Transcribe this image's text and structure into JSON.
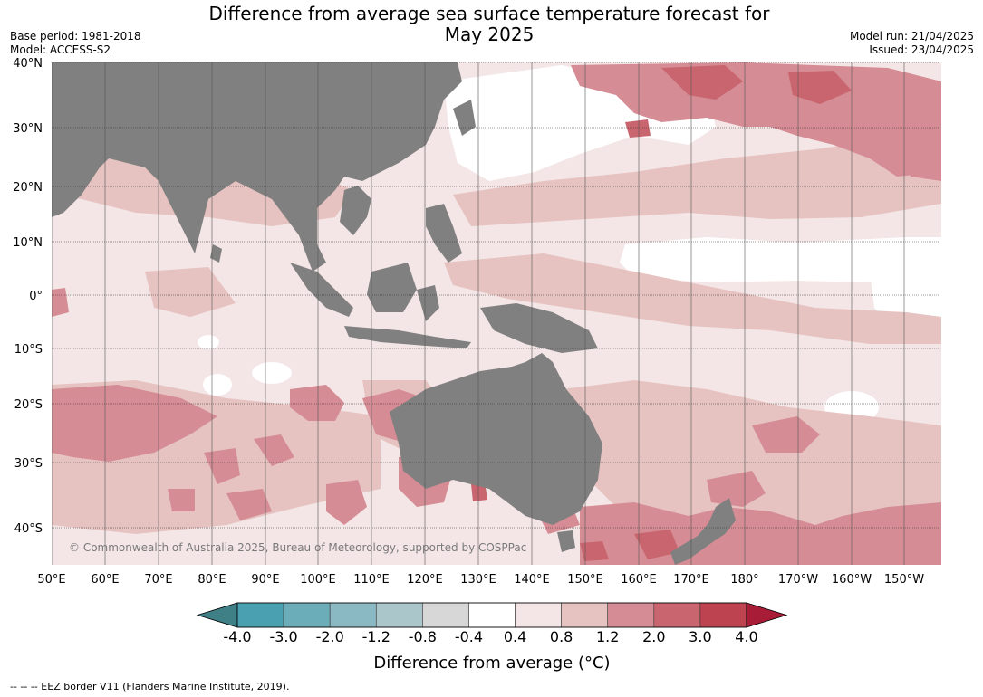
{
  "title_line1": "Difference from average sea surface temperature forecast for",
  "title_line2": "May 2025",
  "meta_left": [
    "Base period: 1981-2018",
    "Model: ACCESS-S2"
  ],
  "meta_right": [
    "Model run: 21/04/2025",
    "Issued: 23/04/2025"
  ],
  "lat_labels": [
    "40°N",
    "30°N",
    "20°N",
    "10°N",
    "0°",
    "10°S",
    "20°S",
    "30°S",
    "40°S"
  ],
  "lon_labels": [
    "50°E",
    "60°E",
    "70°E",
    "80°E",
    "90°E",
    "100°E",
    "110°E",
    "120°E",
    "130°E",
    "140°E",
    "150°E",
    "160°E",
    "170°E",
    "180°",
    "170°W",
    "160°W",
    "150°W"
  ],
  "copyright": "© Commonwealth of Australia 2025, Bureau of Meteorology, supported by COSPPac",
  "colorbar": {
    "ticks": [
      "-4.0",
      "-3.0",
      "-2.0",
      "-1.2",
      "-0.8",
      "-0.4",
      "0.4",
      "0.8",
      "1.2",
      "2.0",
      "3.0",
      "4.0"
    ],
    "colors": [
      "#3f7f86",
      "#4aa0b0",
      "#6cadba",
      "#8ab9c3",
      "#aac6cb",
      "#d7d7d7",
      "#ffffff",
      "#f4e6e6",
      "#e6c3c1",
      "#d58c94",
      "#c9656e",
      "#bd4350",
      "#a81c38"
    ],
    "title": "Difference from average (°C)"
  },
  "footnote": "--  --  -- EEZ border V11 (Flanders Marine Institute, 2019).",
  "colors": {
    "land": "#808080",
    "grid": "#333333"
  }
}
